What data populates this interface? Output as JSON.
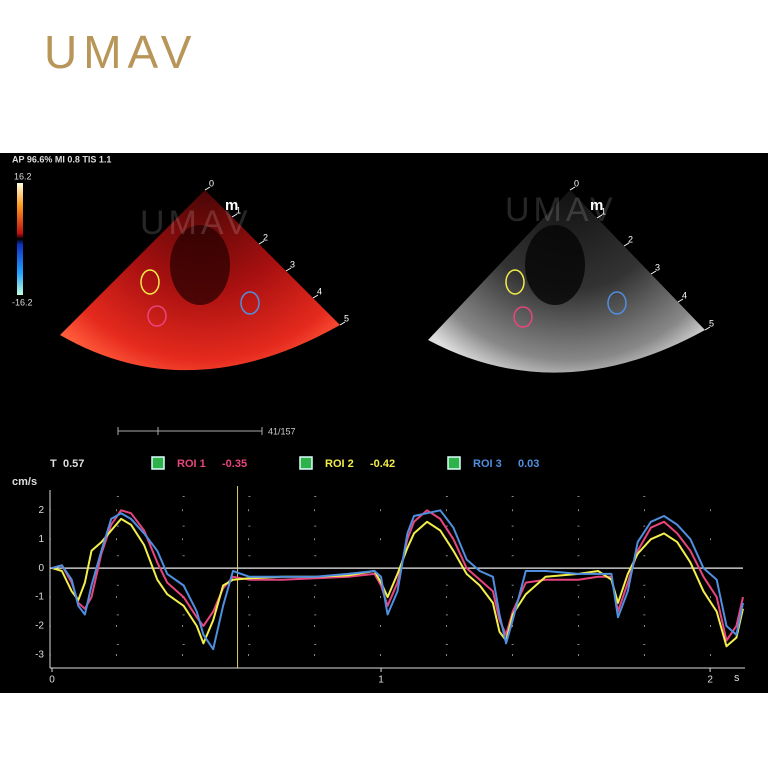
{
  "logo": "UMAV",
  "watermark": "UMAV",
  "header": "AP 96.6%  MI 0.8  TIS 1.1",
  "colorbar": {
    "max": "16.2",
    "min": "-16.2"
  },
  "depth_unit": "m",
  "depth_labels": [
    0,
    1,
    2,
    3,
    4,
    5
  ],
  "frame": "41/157",
  "chart_data": {
    "type": "line",
    "cursor_label": "T",
    "cursor": 0.57,
    "y_label": "cm/s",
    "x_label": "s",
    "xlim": [
      0,
      2.1
    ],
    "ylim": [
      -3.45,
      2.7
    ],
    "xticks": [
      0,
      1,
      2
    ],
    "yticks": [
      2,
      1,
      0,
      -1,
      -2,
      -3
    ],
    "xminor_ticks": [
      0.2,
      0.4,
      0.6,
      0.8,
      1.2,
      1.4,
      1.6,
      1.8
    ],
    "x": [
      0,
      0.03,
      0.06,
      0.08,
      0.1,
      0.12,
      0.15,
      0.18,
      0.21,
      0.24,
      0.28,
      0.32,
      0.35,
      0.4,
      0.44,
      0.46,
      0.49,
      0.52,
      0.55,
      0.6,
      0.7,
      0.8,
      0.9,
      0.98,
      1.0,
      1.02,
      1.05,
      1.08,
      1.1,
      1.14,
      1.18,
      1.22,
      1.26,
      1.3,
      1.34,
      1.36,
      1.38,
      1.4,
      1.44,
      1.5,
      1.6,
      1.66,
      1.7,
      1.72,
      1.75,
      1.78,
      1.82,
      1.86,
      1.9,
      1.94,
      1.98,
      2.02,
      2.05,
      2.08,
      2.1
    ],
    "series": [
      {
        "name": "ROI 1",
        "current": -0.35,
        "color": "#e8457f",
        "values": [
          0,
          0.1,
          -0.5,
          -1.2,
          -1.4,
          -1,
          0.5,
          1.5,
          2.0,
          1.9,
          1.3,
          0.2,
          -0.5,
          -1.0,
          -1.7,
          -2.0,
          -1.5,
          -0.7,
          -0.3,
          -0.4,
          -0.4,
          -0.35,
          -0.3,
          -0.2,
          -0.6,
          -1.3,
          -0.5,
          1.0,
          1.6,
          2.0,
          1.7,
          1.0,
          0,
          -0.4,
          -0.8,
          -1.8,
          -2.3,
          -1.5,
          -0.5,
          -0.4,
          -0.4,
          -0.3,
          -0.3,
          -1.5,
          -0.5,
          0.6,
          1.4,
          1.6,
          1.2,
          0.6,
          -0.3,
          -1.0,
          -2.5,
          -2.0,
          -1.0
        ]
      },
      {
        "name": "ROI 2",
        "current": -0.42,
        "color": "#f2ee4a",
        "values": [
          0,
          -0.1,
          -0.8,
          -1.1,
          -0.5,
          0.6,
          0.9,
          1.3,
          1.7,
          1.5,
          0.8,
          -0.4,
          -0.9,
          -1.3,
          -2.0,
          -2.6,
          -1.8,
          -0.6,
          -0.4,
          -0.35,
          -0.3,
          -0.3,
          -0.25,
          -0.1,
          -0.5,
          -1.0,
          -0.2,
          0.7,
          1.2,
          1.6,
          1.3,
          0.6,
          -0.2,
          -0.6,
          -1.2,
          -2.2,
          -2.5,
          -1.6,
          -0.9,
          -0.3,
          -0.2,
          -0.1,
          -0.4,
          -1.2,
          -0.2,
          0.5,
          1.0,
          1.2,
          0.9,
          0.2,
          -0.8,
          -1.5,
          -2.7,
          -2.4,
          -1.4
        ]
      },
      {
        "name": "ROI 3",
        "current": 0.03,
        "color": "#4f8fe0",
        "values": [
          0,
          0.1,
          -0.4,
          -1.3,
          -1.6,
          -0.6,
          0.6,
          1.7,
          1.9,
          1.7,
          1.2,
          0.6,
          -0.2,
          -0.6,
          -1.5,
          -2.3,
          -2.8,
          -1.3,
          -0.1,
          -0.3,
          -0.3,
          -0.3,
          -0.2,
          -0.1,
          -0.3,
          -1.6,
          -0.8,
          1.2,
          1.8,
          1.9,
          2.0,
          1.4,
          0.3,
          -0.1,
          -0.3,
          -1.6,
          -2.6,
          -1.8,
          -0.1,
          -0.1,
          -0.2,
          -0.2,
          -0.2,
          -1.7,
          -0.8,
          0.9,
          1.6,
          1.8,
          1.5,
          1.0,
          0.0,
          -0.4,
          -2.0,
          -2.3,
          -1.2
        ]
      }
    ]
  }
}
